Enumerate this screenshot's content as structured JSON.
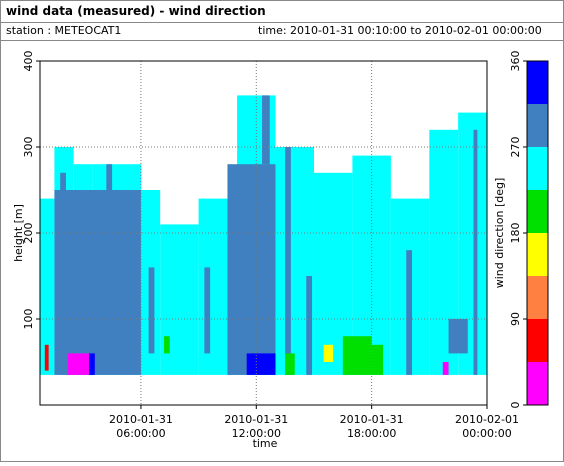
{
  "chart_data": {
    "type": "heatmap",
    "title": "wind data (measured) - wind direction",
    "station": "station : METEOCAT1",
    "period": "time: 2010-01-31 00:10:00 to 2010-02-01 00:00:00",
    "xlabel": "time",
    "ylabel": "height [m]",
    "colorbar_label": "wind direction [deg]",
    "xlim": [
      0.75,
      24
    ],
    "xticks": [
      {
        "value": 6,
        "label": "2010-01-31 06:00:00"
      },
      {
        "value": 12,
        "label": "2010-01-31 12:00:00"
      },
      {
        "value": 18,
        "label": "2010-01-31 18:00:00"
      },
      {
        "value": 24,
        "label": "2010-02-01 00:00:00"
      }
    ],
    "ylim": [
      0,
      400
    ],
    "yticks": [
      100,
      200,
      300,
      400
    ],
    "grid": true,
    "bounds": [
      0,
      45,
      90,
      135,
      180,
      225,
      270,
      315,
      360
    ],
    "colors": [
      "#ff00ff",
      "#ff0000",
      "#ff8040",
      "#ffff00",
      "#00e000",
      "#00ffff",
      "#4080c0",
      "#0000ff"
    ],
    "cticks": [
      0,
      90,
      180,
      270,
      360
    ],
    "cells": [
      [
        0.75,
        1.5,
        35,
        240,
        250
      ],
      [
        1.5,
        2.5,
        35,
        300,
        250
      ],
      [
        2.5,
        3.5,
        35,
        280,
        250
      ],
      [
        3.5,
        6,
        35,
        280,
        250
      ],
      [
        6,
        7,
        35,
        250,
        250
      ],
      [
        7,
        9,
        35,
        210,
        250
      ],
      [
        9,
        11,
        35,
        240,
        250
      ],
      [
        11,
        13,
        35,
        360,
        250
      ],
      [
        13,
        15,
        35,
        300,
        250
      ],
      [
        15,
        17,
        35,
        270,
        250
      ],
      [
        17,
        19,
        35,
        290,
        250
      ],
      [
        19,
        21,
        35,
        240,
        250
      ],
      [
        21,
        22.5,
        35,
        320,
        250
      ],
      [
        22.5,
        24,
        35,
        340,
        250
      ],
      [
        1.5,
        6,
        35,
        250,
        290
      ],
      [
        1.8,
        2.1,
        35,
        270,
        290
      ],
      [
        4.2,
        4.5,
        250,
        280,
        290
      ],
      [
        6.4,
        6.7,
        60,
        160,
        290
      ],
      [
        9.3,
        9.6,
        60,
        160,
        290
      ],
      [
        10.5,
        13,
        35,
        280,
        290
      ],
      [
        12.3,
        12.7,
        280,
        360,
        290
      ],
      [
        13.5,
        13.8,
        35,
        300,
        290
      ],
      [
        14.6,
        14.9,
        35,
        150,
        290
      ],
      [
        19.8,
        20.1,
        35,
        180,
        290
      ],
      [
        22,
        23,
        60,
        100,
        290
      ],
      [
        23.3,
        23.5,
        35,
        320,
        290
      ],
      [
        1,
        1.2,
        40,
        70,
        60
      ],
      [
        2.2,
        3.3,
        35,
        60,
        20
      ],
      [
        3.3,
        3.6,
        35,
        60,
        340
      ],
      [
        11.5,
        13,
        35,
        60,
        340
      ],
      [
        7.2,
        7.5,
        60,
        80,
        200
      ],
      [
        13.5,
        14,
        35,
        60,
        200
      ],
      [
        15.5,
        16,
        50,
        70,
        160
      ],
      [
        16.5,
        18,
        35,
        80,
        200
      ],
      [
        18,
        18.6,
        35,
        70,
        200
      ],
      [
        21.7,
        22,
        35,
        50,
        20
      ]
    ]
  }
}
